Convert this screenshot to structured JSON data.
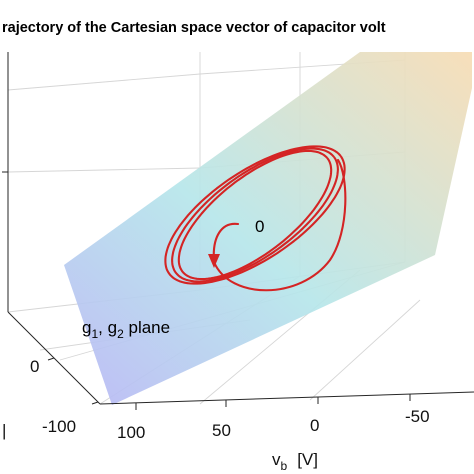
{
  "chart_data": {
    "type": "line",
    "title": "rajectory of the Cartesian space vector of capacitor volt",
    "xlabel": "v",
    "xlabel_sub": "b",
    "xlabel_unit": "[V]",
    "x_ticks": [
      "100",
      "50",
      "0",
      "-50"
    ],
    "y_ticks": [
      "0",
      "-100"
    ],
    "y_axis_fragment": "|",
    "z_ticks": [],
    "grid": true,
    "plane_colors": [
      "#b9b6f5",
      "#b6e6ea",
      "#f7dcb4"
    ],
    "series": [
      {
        "color": "#d42424",
        "orbit_count": 3,
        "start_point_label": "0"
      }
    ],
    "annotations": [
      {
        "text": "0"
      },
      {
        "g_main_1": "g",
        "sub_1": "1",
        "separator": ", ",
        "g_main_2": "g",
        "sub_2": "2",
        "suffix": " plane"
      }
    ]
  }
}
